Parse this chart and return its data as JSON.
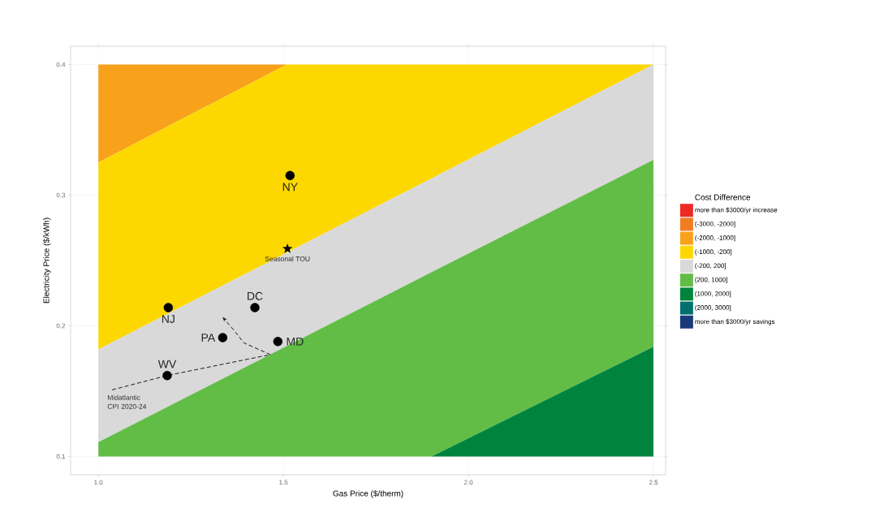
{
  "chart_data": {
    "type": "area",
    "xlabel": "Gas Price ($/therm)",
    "ylabel": "Electricity Price ($/kWh)",
    "legend_title": "Cost Difference",
    "xlim": [
      0.925,
      2.533
    ],
    "ylim": [
      0.086,
      0.414
    ],
    "xticks": [
      {
        "value": 1,
        "label": "1.0"
      },
      {
        "value": 1.5,
        "label": "1.5"
      },
      {
        "value": 2,
        "label": "2.0"
      },
      {
        "value": 2.5,
        "label": "2.5"
      }
    ],
    "yticks": [
      0.1,
      0.2,
      0.3,
      0.4
    ],
    "grid": true,
    "legend": "right",
    "series": [
      {
        "name": "more than $3000/yr increase",
        "color": "#ee2a24"
      },
      {
        "name": "(-3000, -2000]",
        "color": "#f27c22"
      },
      {
        "name": "(-2000, -1000]",
        "color": "#f8a11b",
        "x": [
          1.0,
          1.509
        ],
        "values": [
          0.4,
          0.4
        ]
      },
      {
        "name": "(-1000, -200]",
        "color": "#fcd800",
        "x": [
          1.0,
          1.509,
          2.5
        ],
        "values": [
          0.325,
          0.4,
          0.4
        ]
      },
      {
        "name": "(-200, 200]",
        "color": "#d9d9d9",
        "x": [
          1.0,
          2.5
        ],
        "values": [
          0.182,
          0.4
        ]
      },
      {
        "name": "(200, 1000]",
        "color": "#62bd46",
        "x": [
          1.0,
          1.9,
          2.5
        ],
        "values": [
          0.111,
          0.241,
          0.327
        ]
      },
      {
        "name": "(1000, 2000]",
        "color": "#00843d",
        "x": [
          1.9,
          2.5
        ],
        "values": [
          0.1,
          0.184
        ]
      },
      {
        "name": "(2000, 3000]",
        "color": "#00706e"
      },
      {
        "name": "more than $3000/yr savings",
        "color": "#1b3a7a"
      },
      {
        "type": "line",
        "color": "#1a1a1a",
        "line_style": "dashed",
        "x": [
          1.037,
          1.186,
          1.465
        ],
        "values": [
          0.151,
          0.162,
          0.178
        ]
      },
      {
        "type": "line",
        "color": "#1a1a1a",
        "line_style": "dashed",
        "x": [
          1.465,
          1.393,
          1.371,
          1.344
        ],
        "values": [
          0.178,
          0.187,
          0.195,
          0.204
        ]
      },
      {
        "type": "scatter",
        "name": "NY",
        "color": "#000000",
        "marker": "circle",
        "x": [
          1.518
        ],
        "values": [
          0.315
        ]
      },
      {
        "type": "scatter",
        "name": "NJ",
        "color": "#000000",
        "marker": "circle",
        "x": [
          1.189
        ],
        "values": [
          0.214
        ]
      },
      {
        "type": "scatter",
        "name": "DC",
        "color": "#000000",
        "marker": "circle",
        "x": [
          1.423
        ],
        "values": [
          0.214
        ]
      },
      {
        "type": "scatter",
        "name": "PA",
        "color": "#000000",
        "marker": "circle",
        "x": [
          1.336
        ],
        "values": [
          0.191
        ]
      },
      {
        "type": "scatter",
        "name": "MD",
        "color": "#000000",
        "marker": "circle",
        "x": [
          1.485
        ],
        "values": [
          0.188
        ]
      },
      {
        "type": "scatter",
        "name": "WV",
        "color": "#000000",
        "marker": "circle",
        "x": [
          1.186
        ],
        "values": [
          0.162
        ]
      },
      {
        "type": "scatter",
        "name": "Seasonal TOU",
        "color": "#000000",
        "marker": "star",
        "x": [
          1.511
        ],
        "values": [
          0.259
        ]
      }
    ],
    "annotations": [
      {
        "text": "Midatlantic CPI 2020-24",
        "x": 1.037,
        "y": 0.151
      }
    ]
  }
}
